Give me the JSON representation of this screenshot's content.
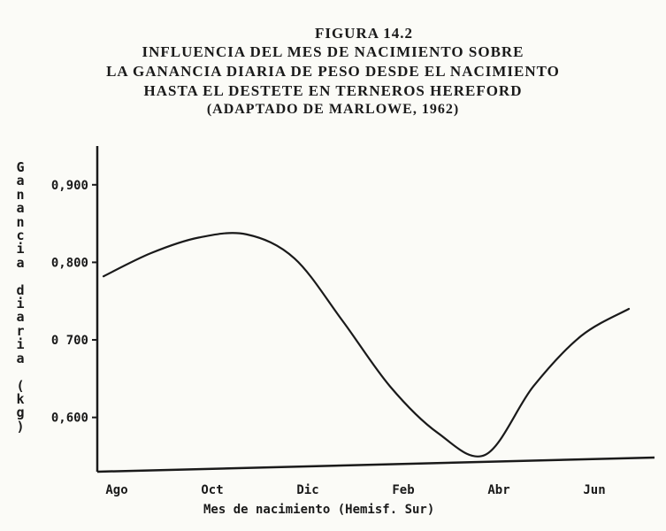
{
  "figure_label": "FIGURA 14.2",
  "title_lines": [
    "INFLUENCIA DEL MES DE NACIMIENTO SOBRE",
    "LA GANANCIA DIARIA DE PESO DESDE EL NACIMIENTO",
    "HASTA EL DESTETE EN TERNEROS HEREFORD"
  ],
  "subtitle": "(ADAPTADO DE MARLOWE, 1962)",
  "chart_data": {
    "type": "line",
    "title": "INFLUENCIA DEL MES DE NACIMIENTO SOBRE LA GANANCIA DIARIA DE PESO DESDE EL NACIMIENTO HASTA EL DESTETE EN TERNEROS HEREFORD",
    "subtitle": "(ADAPTADO DE MARLOWE, 1962)",
    "xlabel": "Mes de nacimiento (Hemisf. Sur)",
    "ylabel": "Ganancia diaria (kg)",
    "x_tick_labels": [
      "Ago",
      "Oct",
      "Dic",
      "Feb",
      "Abr",
      "Jun"
    ],
    "y_tick_labels": [
      "0,900",
      "0,800",
      "0 700",
      "0,600"
    ],
    "y_ticks": [
      0.9,
      0.8,
      0.7,
      0.6
    ],
    "ylim": [
      0.53,
      0.95
    ],
    "grid": false,
    "series": [
      {
        "x": [
          "Ago",
          "Sep",
          "Oct",
          "Nov",
          "Dic",
          "Ene",
          "Feb",
          "Mar",
          "Abr",
          "May",
          "Jun",
          "Jul"
        ],
        "values": [
          0.782,
          0.812,
          0.832,
          0.836,
          0.805,
          0.725,
          0.64,
          0.58,
          0.552,
          0.64,
          0.705,
          0.74
        ]
      }
    ]
  }
}
